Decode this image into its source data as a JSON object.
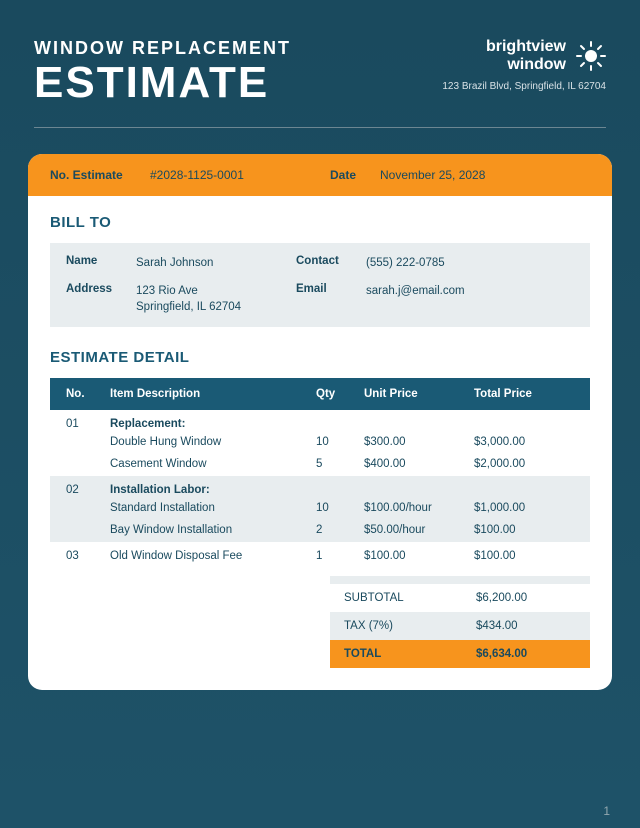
{
  "colors": {
    "bg_top": "#1a4a5e",
    "bg_bottom": "#1e5268",
    "orange": "#f7941d",
    "teal": "#1a5a75",
    "light_gray": "#e8edef",
    "white": "#ffffff",
    "text_dark": "#1a4a5e"
  },
  "header": {
    "subtitle": "WINDOW REPLACEMENT",
    "title": "ESTIMATE",
    "company": {
      "name_line1": "brightview",
      "name_line2": "window",
      "address": "123 Brazil Blvd, Springfield, IL 62704"
    }
  },
  "estimate_bar": {
    "no_label": "No. Estimate",
    "no_value": "#2028-1125-0001",
    "date_label": "Date",
    "date_value": "November 25, 2028"
  },
  "bill_to": {
    "section_title": "BILL TO",
    "name_label": "Name",
    "name": "Sarah Johnson",
    "contact_label": "Contact",
    "contact": "(555) 222-0785",
    "address_label": "Address",
    "address": "123 Rio Ave\nSpringfield, IL 62704",
    "email_label": "Email",
    "email": "sarah.j@email.com"
  },
  "detail": {
    "section_title": "ESTIMATE DETAIL",
    "head": {
      "no": "No.",
      "desc": "Item Description",
      "qty": "Qty",
      "unit": "Unit Price",
      "total": "Total Price"
    },
    "groups": [
      {
        "no": "01",
        "title": "Replacement:",
        "alt": false,
        "rows": [
          {
            "desc": "Double Hung Window",
            "qty": "10",
            "unit": "$300.00",
            "total": "$3,000.00"
          },
          {
            "desc": "Casement Window",
            "qty": "5",
            "unit": "$400.00",
            "total": "$2,000.00"
          }
        ]
      },
      {
        "no": "02",
        "title": "Installation Labor:",
        "alt": true,
        "rows": [
          {
            "desc": "Standard Installation",
            "qty": "10",
            "unit": "$100.00/hour",
            "total": "$1,000.00"
          },
          {
            "desc": "Bay Window Installation",
            "qty": "2",
            "unit": "$50.00/hour",
            "total": "$100.00"
          }
        ]
      },
      {
        "no": "03",
        "title": "Old Window Disposal Fee",
        "alt": false,
        "single": true,
        "rows": [
          {
            "desc": "",
            "qty": "1",
            "unit": "$100.00",
            "total": "$100.00"
          }
        ]
      }
    ],
    "summary": {
      "subtotal_label": "SUBTOTAL",
      "subtotal": "$6,200.00",
      "tax_label": "TAX (7%)",
      "tax": "$434.00",
      "total_label": "TOTAL",
      "total": "$6,634.00"
    }
  },
  "page_number": "1"
}
